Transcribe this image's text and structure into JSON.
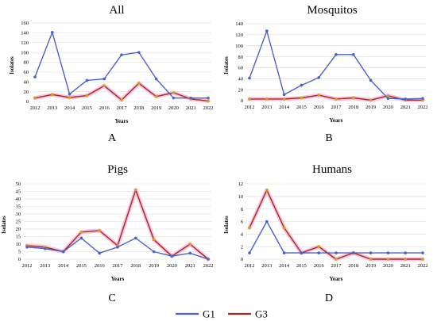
{
  "legend": {
    "items": [
      {
        "name": "G1",
        "color": "#4a63c8"
      },
      {
        "name": "G3",
        "color": "#a8281c"
      }
    ]
  },
  "chart_data": [
    {
      "type": "line",
      "title": "All",
      "panel_letter": "A",
      "xlabel": "Years",
      "ylabel": "Isolates",
      "x": [
        "2012",
        "2013",
        "2014",
        "2015",
        "2016",
        "2017",
        "2018",
        "2019",
        "2020",
        "2021",
        "2022"
      ],
      "ylim": [
        0,
        160
      ],
      "yticks": [
        0,
        20,
        40,
        60,
        80,
        100,
        120,
        140,
        160
      ],
      "series": [
        {
          "name": "G1",
          "color": "#4a63c8",
          "values": [
            50,
            141,
            15,
            43,
            46,
            95,
            100,
            46,
            7,
            7,
            7
          ]
        },
        {
          "name": "G3",
          "color": "#a8281c",
          "values": [
            7,
            14,
            8,
            12,
            32,
            3,
            37,
            10,
            18,
            5,
            1
          ]
        }
      ]
    },
    {
      "type": "line",
      "title": "Mosquitos",
      "panel_letter": "B",
      "xlabel": "Years",
      "ylabel": "Isolates",
      "x": [
        "2012",
        "2013",
        "2014",
        "2015",
        "2016",
        "2017",
        "2018",
        "2019",
        "2020",
        "2021",
        "2022"
      ],
      "ylim": [
        0,
        140
      ],
      "yticks": [
        0,
        20,
        40,
        60,
        80,
        100,
        120,
        140
      ],
      "series": [
        {
          "name": "G1",
          "color": "#4a63c8",
          "values": [
            41,
            127,
            11,
            28,
            42,
            84,
            84,
            37,
            4,
            3,
            4
          ]
        },
        {
          "name": "G3",
          "color": "#a8281c",
          "values": [
            3,
            3,
            3,
            5,
            10,
            3,
            5,
            1,
            9,
            1,
            1
          ]
        }
      ]
    },
    {
      "type": "line",
      "title": "Pigs",
      "panel_letter": "C",
      "xlabel": "Years",
      "ylabel": "Isolates",
      "x": [
        "2012",
        "2013",
        "2014",
        "2015",
        "2016",
        "2017",
        "2018",
        "2019",
        "2020",
        "2021",
        "2022"
      ],
      "ylim": [
        0,
        50
      ],
      "yticks": [
        0,
        5,
        10,
        15,
        20,
        25,
        30,
        35,
        40,
        45,
        50
      ],
      "series": [
        {
          "name": "G1",
          "color": "#4a63c8",
          "values": [
            8,
            7,
            5,
            14,
            4,
            8,
            14,
            5,
            2,
            4,
            0
          ]
        },
        {
          "name": "G3",
          "color": "#a8281c",
          "values": [
            9,
            8,
            5,
            18,
            19,
            9,
            46,
            13,
            2,
            10,
            0
          ]
        }
      ]
    },
    {
      "type": "line",
      "title": "Humans",
      "panel_letter": "D",
      "xlabel": "Years",
      "ylabel": "Isolates",
      "x": [
        "2012",
        "2013",
        "2014",
        "2015",
        "2016",
        "2017",
        "2018",
        "2019",
        "2020",
        "2021",
        "2022"
      ],
      "ylim": [
        0,
        12
      ],
      "yticks": [
        0,
        2,
        4,
        6,
        8,
        10,
        12
      ],
      "series": [
        {
          "name": "G1",
          "color": "#4a63c8",
          "values": [
            1,
            6,
            1,
            1,
            1,
            1,
            1,
            1,
            1,
            1,
            1
          ]
        },
        {
          "name": "G3",
          "color": "#a8281c",
          "values": [
            5,
            11,
            5,
            1,
            2,
            0,
            1,
            0,
            0,
            0,
            0
          ]
        }
      ]
    }
  ]
}
